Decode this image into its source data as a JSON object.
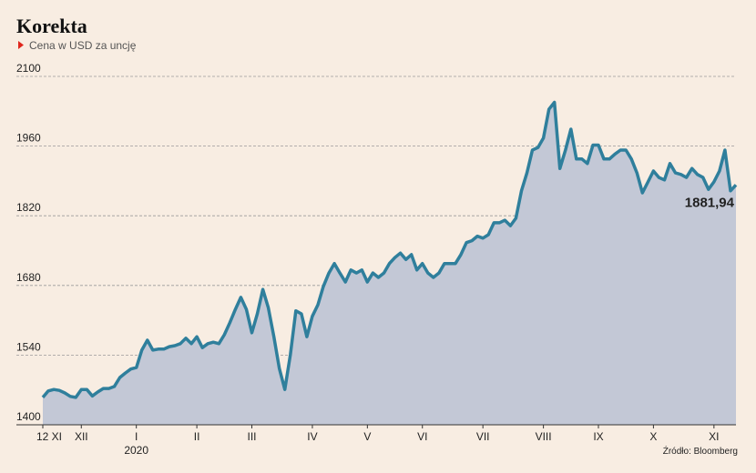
{
  "chart_data": {
    "type": "line",
    "title": "Korekta",
    "subtitle": "Cena w USD za uncję",
    "source": "Źródło: Bloomberg",
    "year_label": "2020",
    "categories": [
      "12 XI",
      null,
      null,
      null,
      null,
      null,
      null,
      "XII",
      null,
      null,
      null,
      null,
      null,
      null,
      null,
      null,
      null,
      "I",
      null,
      null,
      null,
      null,
      null,
      null,
      null,
      null,
      null,
      null,
      "II",
      null,
      null,
      null,
      null,
      null,
      null,
      null,
      null,
      null,
      "III",
      null,
      null,
      null,
      null,
      null,
      null,
      null,
      null,
      null,
      null,
      "IV",
      null,
      null,
      null,
      null,
      null,
      null,
      null,
      null,
      null,
      "V",
      null,
      null,
      null,
      null,
      null,
      null,
      null,
      null,
      null,
      "VI",
      null,
      null,
      null,
      null,
      null,
      null,
      null,
      null,
      null,
      null,
      "VII",
      null,
      null,
      null,
      null,
      null,
      null,
      null,
      null,
      null,
      null,
      "VIII",
      null,
      null,
      null,
      null,
      null,
      null,
      null,
      null,
      null,
      "IX",
      null,
      null,
      null,
      null,
      null,
      null,
      null,
      null,
      null,
      "X",
      null,
      null,
      null,
      null,
      null,
      null,
      null,
      null,
      null,
      null,
      "XI",
      null,
      null,
      null,
      null
    ],
    "series": [
      {
        "name": "Cena",
        "color": "#2f7f9c",
        "fill": "#c3c8d6",
        "values": [
          1455,
          1468,
          1471,
          1469,
          1464,
          1457,
          1455,
          1471,
          1471,
          1458,
          1466,
          1473,
          1473,
          1477,
          1495,
          1504,
          1512,
          1515,
          1550,
          1570,
          1550,
          1552,
          1552,
          1557,
          1559,
          1563,
          1574,
          1563,
          1577,
          1555,
          1563,
          1566,
          1563,
          1581,
          1605,
          1632,
          1656,
          1632,
          1585,
          1623,
          1672,
          1635,
          1577,
          1513,
          1471,
          1541,
          1629,
          1623,
          1577,
          1618,
          1641,
          1678,
          1705,
          1724,
          1705,
          1687,
          1711,
          1705,
          1711,
          1687,
          1705,
          1696,
          1705,
          1724,
          1736,
          1745,
          1732,
          1742,
          1711,
          1724,
          1705,
          1696,
          1705,
          1724,
          1724,
          1724,
          1742,
          1766,
          1770,
          1779,
          1775,
          1782,
          1806,
          1806,
          1811,
          1800,
          1815,
          1870,
          1906,
          1952,
          1957,
          1976,
          2034,
          2048,
          1915,
          1952,
          1994,
          1934,
          1934,
          1925,
          1962,
          1962,
          1934,
          1934,
          1944,
          1952,
          1952,
          1934,
          1906,
          1866,
          1888,
          1910,
          1897,
          1892,
          1925,
          1906,
          1903,
          1897,
          1915,
          1903,
          1897,
          1873,
          1888,
          1910,
          1952,
          1870,
          1881.94
        ],
        "value_labels": [
          null,
          null,
          null,
          null,
          null,
          null,
          null,
          null,
          null,
          null,
          null,
          null,
          null,
          null,
          null,
          null,
          null,
          null,
          null,
          null,
          null,
          null,
          null,
          null,
          null,
          null,
          null,
          null,
          null,
          null,
          null,
          null,
          null,
          null,
          null,
          null,
          null,
          null,
          null,
          null,
          null,
          null,
          null,
          null,
          null,
          null,
          null,
          null,
          null,
          null,
          null,
          null,
          null,
          null,
          null,
          null,
          null,
          null,
          null,
          null,
          null,
          null,
          null,
          null,
          null,
          null,
          null,
          null,
          null,
          null,
          null,
          null,
          null,
          null,
          null,
          null,
          null,
          null,
          null,
          null,
          null,
          null,
          null,
          null,
          null,
          null,
          null,
          null,
          null,
          null,
          null,
          null,
          null,
          null,
          null,
          null,
          null,
          null,
          null,
          null,
          null,
          null,
          null,
          null,
          null,
          null,
          null,
          null,
          null,
          null,
          null,
          null,
          null,
          null,
          null,
          null,
          null,
          null,
          null,
          null,
          null,
          null,
          null,
          null,
          null,
          null,
          "1881,94"
        ]
      }
    ],
    "ylim": [
      1400,
      2100
    ],
    "yticks": [
      1400,
      1540,
      1680,
      1820,
      1960,
      2100
    ],
    "grid": true
  }
}
